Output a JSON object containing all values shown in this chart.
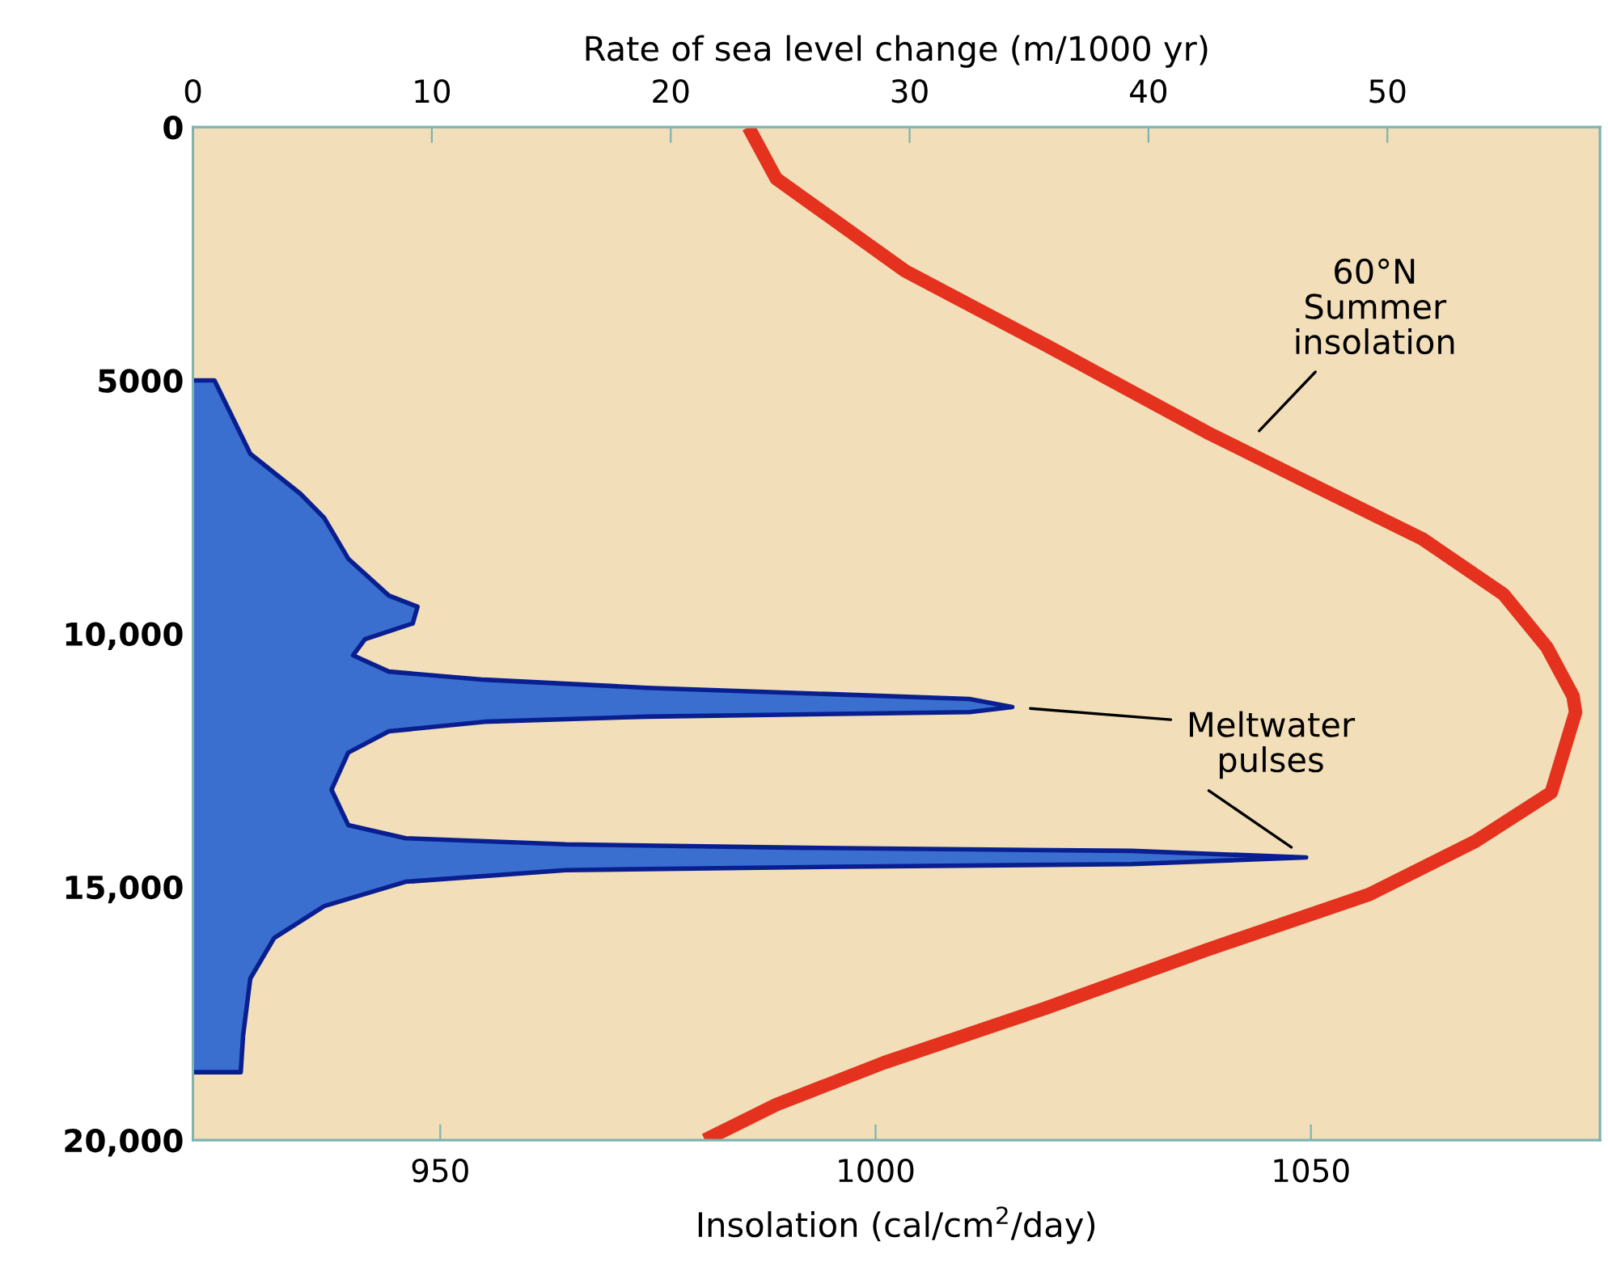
{
  "chart_data": {
    "type": "line",
    "orientation": "horizontal",
    "xlabel": "Insolation (cal/cm$^{2}$/day)",
    "x2label": "Rate of sea level change (m/1000 yr)",
    "xlim": [
      921.6,
      1083.2
    ],
    "xticks": [
      950,
      1000,
      1050
    ],
    "x2lim": [
      0,
      58.9
    ],
    "x2ticks": [
      0,
      10,
      20,
      30,
      40,
      50
    ],
    "ylim": [
      20000,
      0
    ],
    "yticks": [
      0,
      5000,
      {
        "value": 10000,
        "label": "10,000"
      },
      {
        "value": 15000,
        "label": "15,000"
      },
      {
        "value": 20000,
        "label": "20,000"
      }
    ],
    "grid": false,
    "series": [
      {
        "type": "area",
        "axis": "x2",
        "color": "#3a6fd0",
        "x": [
          5000,
          5000,
          6450,
          7240,
          7720,
          8520,
          9250,
          9470,
          9800,
          10110,
          10430,
          10750,
          10910,
          11070,
          11290,
          11450,
          11550,
          11640,
          11740,
          11930,
          12350,
          13080,
          13780,
          14040,
          14160,
          14230,
          14290,
          14420,
          14550,
          14610,
          14670,
          14900,
          15380,
          16010,
          16810,
          17930,
          18660,
          18660
        ],
        "values": [
          0,
          0.9,
          2.4,
          4.5,
          5.5,
          6.5,
          8.2,
          9.4,
          9.2,
          7.2,
          6.7,
          8.2,
          12.2,
          19,
          32.5,
          34.3,
          32.5,
          19,
          12.2,
          8.2,
          6.5,
          5.8,
          6.5,
          8.9,
          15.6,
          25.7,
          39.3,
          46.6,
          39.3,
          25.7,
          15.6,
          8.9,
          5.5,
          3.4,
          2.4,
          2.1,
          2.0,
          0
        ]
      },
      {
        "color": "#e4321e",
        "x": [
          0,
          1020,
          2840,
          4310,
          6030,
          7080,
          8130,
          9220,
          10270,
          11230,
          11550,
          13140,
          14100,
          15150,
          16240,
          17390,
          18470,
          19300,
          20000
        ],
        "values": [
          985.4,
          988.6,
          1003.4,
          1019.6,
          1038.1,
          1050.4,
          1062.8,
          1072.1,
          1077.1,
          1080.1,
          1080.4,
          1077.6,
          1068.9,
          1056.7,
          1038.1,
          1019.6,
          1001.0,
          988.6,
          980.4
        ]
      }
    ],
    "annotations": [
      {
        "text": "60°N\nSummer\ninsolation",
        "x": 1043,
        "y": 6190
      },
      "Meltwater\npulses"
    ]
  }
}
